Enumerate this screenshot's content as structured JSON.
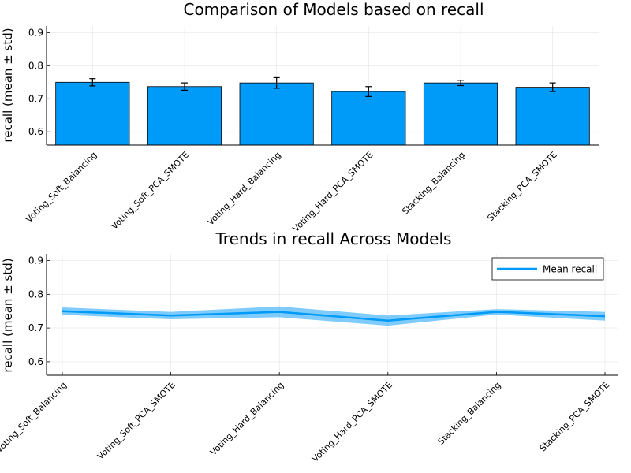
{
  "chart_data": [
    {
      "type": "bar",
      "title": "Comparison of Models based on recall",
      "xlabel": "",
      "ylabel": "recall (mean ± std)",
      "ylim": [
        0.56,
        0.92
      ],
      "yticks": [
        "0.6",
        "0.7",
        "0.8",
        "0.9"
      ],
      "grid": true,
      "legend": "none",
      "bar_color": "#009AF9",
      "categories": [
        "Voting_Soft_Balancing",
        "Voting_Soft_PCA_SMOTE",
        "Voting_Hard_Balancing",
        "Voting_Hard_PCA_SMOTE",
        "Stacking_Balancing",
        "Stacking_PCA_SMOTE"
      ],
      "series": [
        {
          "values": [
            0.75,
            0.737,
            0.748,
            0.722,
            0.748,
            0.735
          ],
          "std": [
            0.011,
            0.011,
            0.016,
            0.015,
            0.008,
            0.013
          ]
        }
      ]
    },
    {
      "type": "line",
      "title": "Trends in recall Across Models",
      "xlabel": "",
      "ylabel": "recall (mean ± std)",
      "ylim": [
        0.56,
        0.92
      ],
      "yticks": [
        "0.6",
        "0.7",
        "0.8",
        "0.9"
      ],
      "grid": true,
      "legend": "top-right",
      "line_color": "#009AF9",
      "categories": [
        "Voting_Soft_Balancing",
        "Voting_Soft_PCA_SMOTE",
        "Voting_Hard_Balancing",
        "Voting_Hard_PCA_SMOTE",
        "Stacking_Balancing",
        "Stacking_PCA_SMOTE"
      ],
      "series": [
        {
          "name": "Mean recall",
          "values": [
            0.75,
            0.737,
            0.748,
            0.722,
            0.748,
            0.735
          ],
          "std": [
            0.011,
            0.011,
            0.016,
            0.015,
            0.008,
            0.013
          ]
        }
      ]
    }
  ]
}
